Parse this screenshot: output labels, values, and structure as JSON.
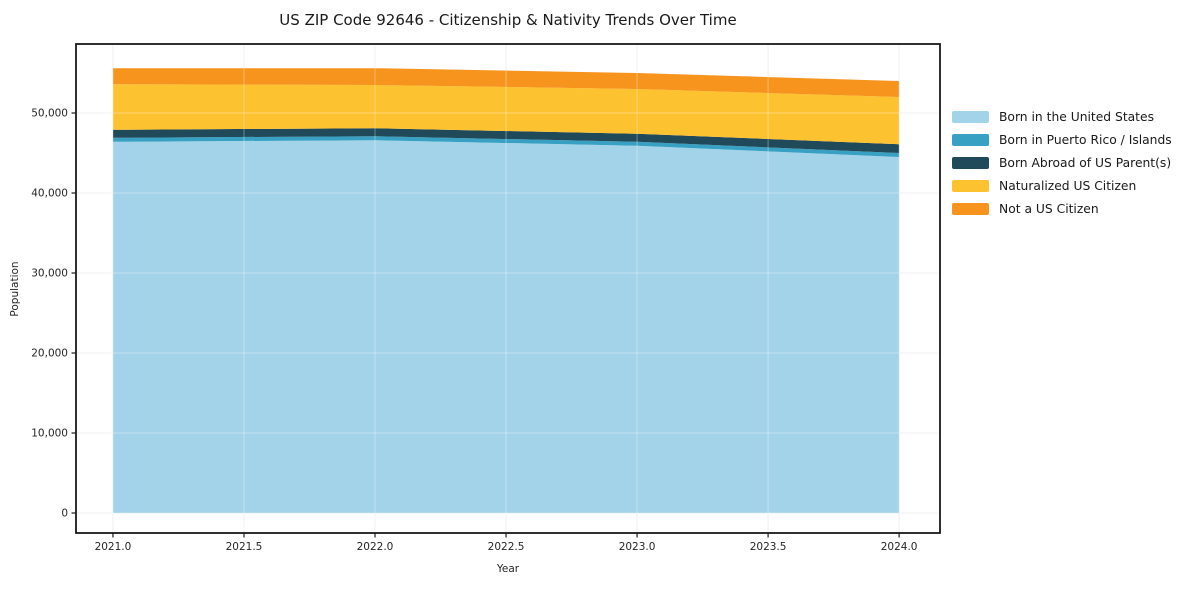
{
  "chart_data": {
    "type": "area",
    "stacked": true,
    "title": "US ZIP Code 92646 - Citizenship & Nativity Trends Over Time",
    "xlabel": "Year",
    "ylabel": "Population",
    "x": [
      2021,
      2022,
      2023,
      2024
    ],
    "x_ticks": [
      2021.0,
      2021.5,
      2022.0,
      2022.5,
      2023.0,
      2023.5,
      2024.0
    ],
    "x_tick_labels": [
      "2021.0",
      "2021.5",
      "2022.0",
      "2022.5",
      "2023.0",
      "2023.5",
      "2024.0"
    ],
    "y_ticks": [
      0,
      10000,
      20000,
      30000,
      40000,
      50000
    ],
    "y_tick_labels": [
      "0",
      "10,000",
      "20,000",
      "30,000",
      "40,000",
      "50,000"
    ],
    "xlim": [
      2020.859,
      2024.156
    ],
    "ylim": [
      -2500,
      58625
    ],
    "grid": true,
    "legend_position": "outside-right",
    "series": [
      {
        "name": "Born in the United States",
        "color": "#a3d3e9",
        "values": [
          46400,
          46600,
          45900,
          44500
        ]
      },
      {
        "name": "Born in Puerto Rico / Islands",
        "color": "#38a0c2",
        "values": [
          500,
          500,
          500,
          500
        ]
      },
      {
        "name": "Born Abroad of US Parent(s)",
        "color": "#20495a",
        "values": [
          1000,
          1000,
          1000,
          1100
        ]
      },
      {
        "name": "Naturalized US Citizen",
        "color": "#fdc230",
        "values": [
          5700,
          5400,
          5600,
          5900
        ]
      },
      {
        "name": "Not a US Citizen",
        "color": "#f7941e",
        "values": [
          2000,
          2100,
          2000,
          2000
        ]
      }
    ],
    "colors": {
      "plot_border": "#1a1a1a",
      "grid_under": "#e9e9e9",
      "grid_over": "rgba(255,255,255,0.35)",
      "tick_text": "#262626"
    }
  }
}
